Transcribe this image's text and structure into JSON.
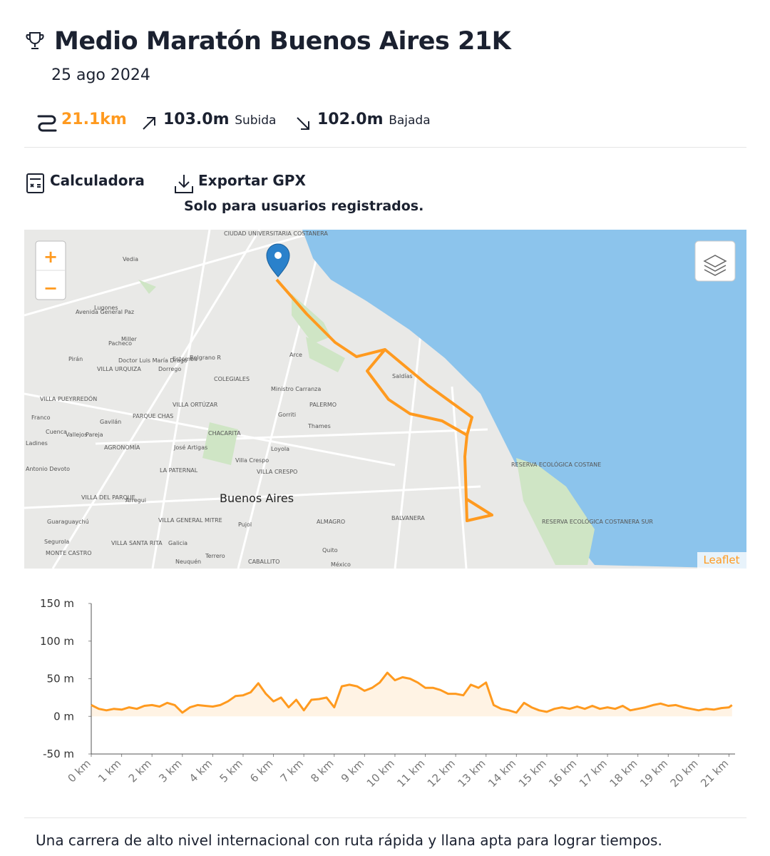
{
  "header": {
    "title": "Medio Maratón Buenos Aires 21K",
    "date": "25 ago 2024"
  },
  "stats": {
    "distance": "21.1km",
    "ascent": "103.0m",
    "ascent_label": "Subida",
    "descent": "102.0m",
    "descent_label": "Bajada"
  },
  "actions": {
    "calculator": "Calculadora",
    "export": "Exportar GPX",
    "export_note": "Solo para usuarios registrados."
  },
  "map": {
    "zoom_in": "+",
    "zoom_out": "−",
    "attribution": "Leaflet",
    "labels": [
      "Buenos Aires",
      "PALERMO",
      "CHACARITA",
      "COLEGIALES",
      "VILLA URQUIZA",
      "VILLA PUEYRREDÓN",
      "VILLA ORTÚZAR",
      "PARQUE CHAS",
      "AGRONOMÍA",
      "LA PATERNAL",
      "VILLA CRESPO",
      "VILLA DEL PARQUE",
      "VILLA GENERAL MITRE",
      "VILLA SANTA RITA",
      "MONTE CASTRO",
      "ALMAGRO",
      "BALVANERA",
      "CABALLITO",
      "Saldías",
      "Belgrano R",
      "Doctor Luis María Drago",
      "Ministro Carranza",
      "José Artigas",
      "Villa Crespo",
      "Antonio Devoto",
      "RESERVA ECOLÓGICA COSTANERA SUR",
      "RESERVA ECOLÓGICA COSTANE",
      "CIUDAD UNIVERSITARIA COSTANERA",
      "Avenida General Paz",
      "Vedia",
      "Lugones",
      "Pacheco",
      "Miller",
      "Arce",
      "Dorrego",
      "Thames",
      "Gorriti",
      "Loyola",
      "Gavilán",
      "Franco",
      "Cuenca",
      "Pareja",
      "Vallejos",
      "Ladines",
      "Arregui",
      "Galicia",
      "Neuquén",
      "Terrero",
      "Quito",
      "México",
      "Pujol",
      "Estomba",
      "Guaraguaychú",
      "Segurola",
      "Pirán"
    ]
  },
  "chart_data": {
    "type": "area",
    "x": [
      0,
      0.25,
      0.5,
      0.75,
      1,
      1.25,
      1.5,
      1.75,
      2,
      2.25,
      2.5,
      2.75,
      3,
      3.25,
      3.5,
      3.75,
      4,
      4.25,
      4.5,
      4.75,
      5,
      5.25,
      5.5,
      5.75,
      6,
      6.25,
      6.5,
      6.75,
      7,
      7.25,
      7.5,
      7.75,
      8,
      8.25,
      8.5,
      8.75,
      9,
      9.25,
      9.5,
      9.75,
      10,
      10.25,
      10.5,
      10.75,
      11,
      11.25,
      11.5,
      11.75,
      12,
      12.25,
      12.5,
      12.75,
      13,
      13.25,
      13.5,
      13.75,
      14,
      14.25,
      14.5,
      14.75,
      15,
      15.25,
      15.5,
      15.75,
      16,
      16.25,
      16.5,
      16.75,
      17,
      17.25,
      17.5,
      17.75,
      18,
      18.25,
      18.5,
      18.75,
      19,
      19.25,
      19.5,
      19.75,
      20,
      20.25,
      20.5,
      20.75,
      21,
      21.1
    ],
    "values": [
      15,
      10,
      8,
      10,
      9,
      12,
      10,
      14,
      15,
      13,
      18,
      15,
      5,
      12,
      15,
      14,
      13,
      15,
      20,
      27,
      28,
      32,
      44,
      30,
      20,
      25,
      12,
      22,
      8,
      22,
      23,
      25,
      12,
      40,
      42,
      40,
      34,
      38,
      45,
      58,
      48,
      52,
      50,
      45,
      38,
      38,
      35,
      30,
      30,
      28,
      42,
      38,
      45,
      15,
      10,
      8,
      5,
      18,
      12,
      8,
      6,
      10,
      12,
      10,
      13,
      10,
      14,
      10,
      12,
      10,
      14,
      8,
      10,
      12,
      15,
      17,
      14,
      15,
      12,
      10,
      8,
      10,
      9,
      11,
      12,
      15
    ],
    "color": "#ff9a1f",
    "xlim": [
      0,
      21.2
    ],
    "ylim": [
      -50,
      150
    ],
    "xticks": [
      {
        "value": 0,
        "label": "0 km"
      },
      {
        "value": 1,
        "label": "1 km"
      },
      {
        "value": 2,
        "label": "2 km"
      },
      {
        "value": 3,
        "label": "3 km"
      },
      {
        "value": 4,
        "label": "4 km"
      },
      {
        "value": 5,
        "label": "5 km"
      },
      {
        "value": 6,
        "label": "6 km"
      },
      {
        "value": 7,
        "label": "7 km"
      },
      {
        "value": 8,
        "label": "8 km"
      },
      {
        "value": 9,
        "label": "9 km"
      },
      {
        "value": 10,
        "label": "10 km"
      },
      {
        "value": 11,
        "label": "11 km"
      },
      {
        "value": 12,
        "label": "12 km"
      },
      {
        "value": 13,
        "label": "13 km"
      },
      {
        "value": 14,
        "label": "14 km"
      },
      {
        "value": 15,
        "label": "15 km"
      },
      {
        "value": 16,
        "label": "16 km"
      },
      {
        "value": 17,
        "label": "17 km"
      },
      {
        "value": 18,
        "label": "18 km"
      },
      {
        "value": 19,
        "label": "19 km"
      },
      {
        "value": 20,
        "label": "20 km"
      },
      {
        "value": 21,
        "label": "21 km"
      }
    ],
    "yticks": [
      {
        "value": -50,
        "label": "-50 m"
      },
      {
        "value": 0,
        "label": "0 m"
      },
      {
        "value": 50,
        "label": "50 m"
      },
      {
        "value": 100,
        "label": "100 m"
      },
      {
        "value": 150,
        "label": "150 m"
      }
    ]
  },
  "description": "Una carrera de alto nivel internacional con ruta rápida y llana apta para lograr tiempos."
}
